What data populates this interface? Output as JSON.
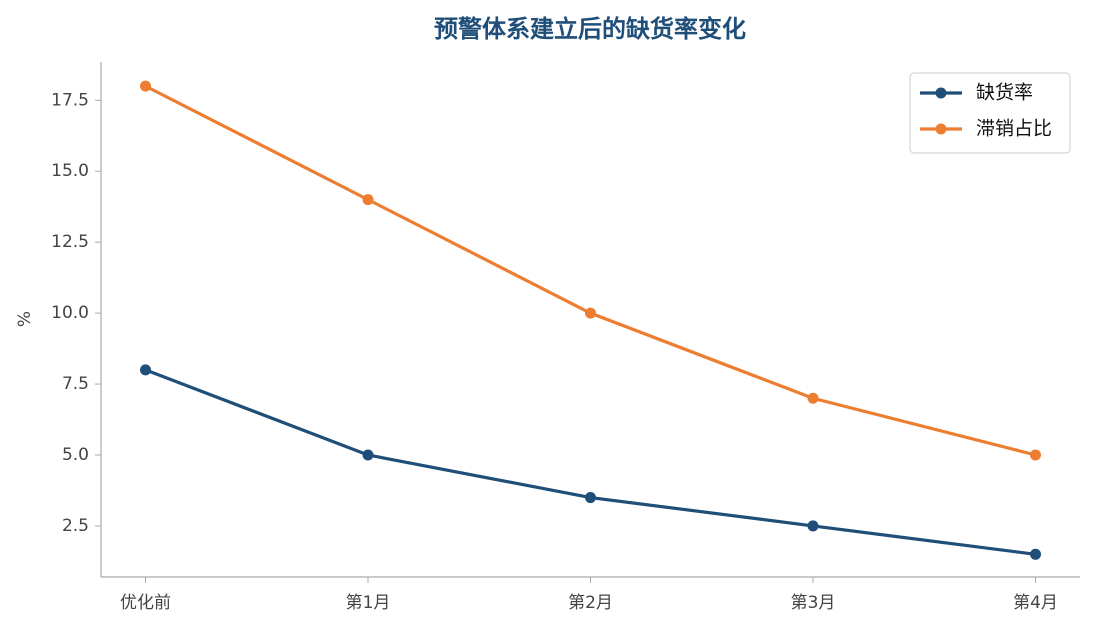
{
  "chart_data": {
    "type": "line",
    "title": "预警体系建立后的缺货率变化",
    "y_label": "%",
    "categories": [
      "优化前",
      "第1月",
      "第2月",
      "第3月",
      "第4月"
    ],
    "series": [
      {
        "name": "缺货率",
        "color": "#1f4e79",
        "values": [
          8,
          5,
          3.5,
          2.5,
          1.5
        ]
      },
      {
        "name": "滞销占比",
        "color": "#ed7d31",
        "values": [
          18,
          14,
          10,
          7,
          5
        ]
      }
    ],
    "ylim": [
      0.7,
      18.85
    ],
    "yticks": [
      2.5,
      {
        "value": 5,
        "label": "5.0"
      },
      7.5,
      {
        "value": 10,
        "label": "10.0"
      },
      12.5,
      {
        "value": 15,
        "label": "15.0"
      },
      17.5
    ],
    "legend": "upper right"
  }
}
